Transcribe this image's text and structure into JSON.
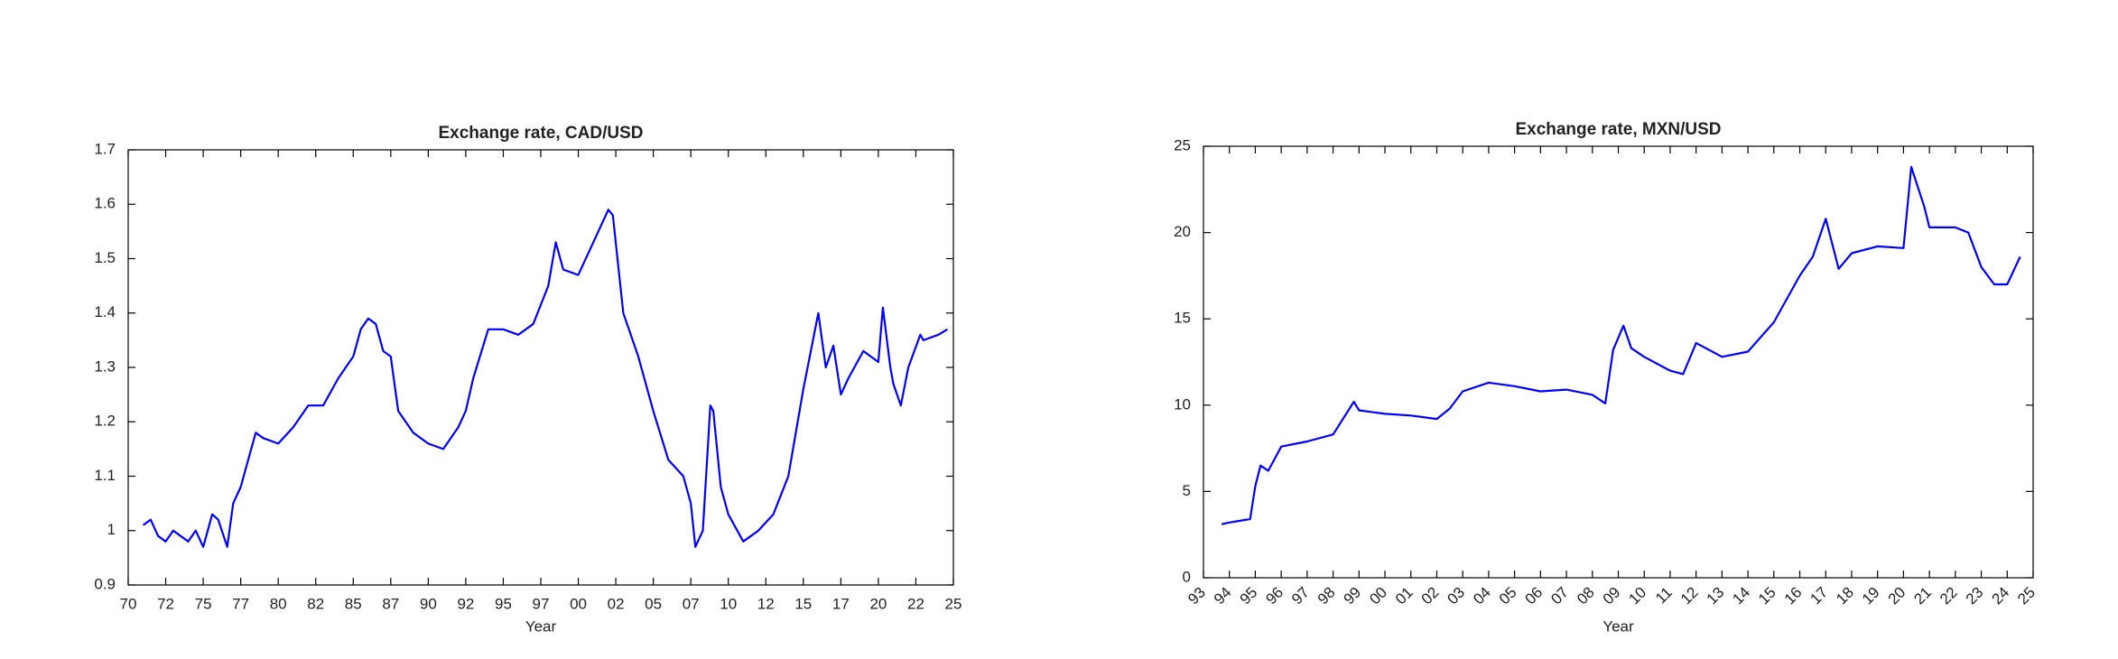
{
  "chart_data": [
    {
      "type": "line",
      "title": "Exchange rate, CAD/USD",
      "xlabel": "Year",
      "color": "#0000ff",
      "x": [
        1971,
        1971.5,
        1972,
        1972.5,
        1973,
        1974,
        1974.5,
        1975,
        1975.6,
        1976,
        1976.6,
        1977,
        1977.5,
        1978,
        1978.5,
        1979,
        1980,
        1981,
        1981.5,
        1982,
        1983,
        1984,
        1985,
        1985.5,
        1986,
        1986.5,
        1987,
        1987.5,
        1988,
        1989,
        1990,
        1991,
        1992,
        1992.5,
        1993,
        1994,
        1995,
        1996,
        1997,
        1998,
        1998.5,
        1999,
        2000,
        2001,
        2002,
        2002.3,
        2003,
        2004,
        2005,
        2006,
        2007,
        2007.5,
        2007.8,
        2008.3,
        2008.8,
        2009,
        2009.5,
        2010,
        2011,
        2012,
        2013,
        2014,
        2015,
        2016,
        2016.5,
        2017,
        2017.5,
        2018,
        2019,
        2020,
        2020.3,
        2020.8,
        2021,
        2021.5,
        2022,
        2022.8,
        2023,
        2024,
        2024.6
      ],
      "values": [
        1.01,
        1.02,
        0.99,
        0.98,
        1.0,
        0.98,
        1.0,
        0.97,
        1.03,
        1.02,
        0.97,
        1.05,
        1.08,
        1.13,
        1.18,
        1.17,
        1.16,
        1.19,
        1.21,
        1.23,
        1.23,
        1.28,
        1.32,
        1.37,
        1.39,
        1.38,
        1.33,
        1.32,
        1.22,
        1.18,
        1.16,
        1.15,
        1.19,
        1.22,
        1.28,
        1.37,
        1.37,
        1.36,
        1.38,
        1.45,
        1.53,
        1.48,
        1.47,
        1.53,
        1.59,
        1.58,
        1.4,
        1.32,
        1.22,
        1.13,
        1.1,
        1.05,
        0.97,
        1.0,
        1.23,
        1.22,
        1.08,
        1.03,
        0.98,
        1.0,
        1.03,
        1.1,
        1.26,
        1.4,
        1.3,
        1.34,
        1.25,
        1.28,
        1.33,
        1.31,
        1.41,
        1.3,
        1.27,
        1.23,
        1.3,
        1.36,
        1.35,
        1.36,
        1.37
      ],
      "xlim": [
        1970,
        2025
      ],
      "xticks": [
        {
          "value": 1970,
          "label": "70"
        },
        {
          "value": 1972.5,
          "label": "72"
        },
        {
          "value": 1975,
          "label": "75"
        },
        {
          "value": 1977.5,
          "label": "77"
        },
        {
          "value": 1980,
          "label": "80"
        },
        {
          "value": 1982.5,
          "label": "82"
        },
        {
          "value": 1985,
          "label": "85"
        },
        {
          "value": 1987.5,
          "label": "87"
        },
        {
          "value": 1990,
          "label": "90"
        },
        {
          "value": 1992.5,
          "label": "92"
        },
        {
          "value": 1995,
          "label": "95"
        },
        {
          "value": 1997.5,
          "label": "97"
        },
        {
          "value": 2000,
          "label": "00"
        },
        {
          "value": 2002.5,
          "label": "02"
        },
        {
          "value": 2005,
          "label": "05"
        },
        {
          "value": 2007.5,
          "label": "07"
        },
        {
          "value": 2010,
          "label": "10"
        },
        {
          "value": 2012.5,
          "label": "12"
        },
        {
          "value": 2015,
          "label": "15"
        },
        {
          "value": 2017.5,
          "label": "17"
        },
        {
          "value": 2020,
          "label": "20"
        },
        {
          "value": 2022.5,
          "label": "22"
        },
        {
          "value": 2025,
          "label": "25"
        }
      ],
      "ylim": [
        0.9,
        1.7
      ],
      "yticks": [
        0.9,
        1,
        1.1,
        1.2,
        1.3,
        1.4,
        1.5,
        1.6,
        1.7
      ],
      "rotate_xticks": false
    },
    {
      "type": "line",
      "title": "Exchange rate, MXN/USD",
      "xlabel": "Year",
      "color": "#0000ff",
      "x": [
        1993.7,
        1994,
        1994.8,
        1995,
        1995.2,
        1995.5,
        1996,
        1997,
        1998,
        1998.8,
        1999,
        2000,
        2001,
        2002,
        2002.5,
        2003,
        2004,
        2005,
        2006,
        2007,
        2008,
        2008.5,
        2008.8,
        2009.2,
        2009.5,
        2010,
        2011,
        2011.5,
        2012,
        2013,
        2014,
        2015,
        2016,
        2016.5,
        2017,
        2017.5,
        2018,
        2019,
        2020,
        2020.3,
        2020.8,
        2021,
        2022,
        2022.5,
        2023,
        2023.5,
        2024,
        2024.5
      ],
      "values": [
        3.1,
        3.2,
        3.4,
        5.3,
        6.5,
        6.2,
        7.6,
        7.9,
        8.3,
        10.2,
        9.7,
        9.5,
        9.4,
        9.2,
        9.8,
        10.8,
        11.3,
        11.1,
        10.8,
        10.9,
        10.6,
        10.1,
        13.2,
        14.6,
        13.3,
        12.8,
        12.0,
        11.8,
        13.6,
        12.8,
        13.1,
        14.8,
        17.5,
        18.6,
        20.8,
        17.9,
        18.8,
        19.2,
        19.1,
        23.8,
        21.5,
        20.3,
        20.3,
        20.0,
        18.0,
        17.0,
        17.0,
        18.6
      ],
      "xlim": [
        1993,
        2025
      ],
      "xticks": [
        {
          "value": 1993,
          "label": "93"
        },
        {
          "value": 1994,
          "label": "94"
        },
        {
          "value": 1995,
          "label": "95"
        },
        {
          "value": 1996,
          "label": "96"
        },
        {
          "value": 1997,
          "label": "97"
        },
        {
          "value": 1998,
          "label": "98"
        },
        {
          "value": 1999,
          "label": "99"
        },
        {
          "value": 2000,
          "label": "00"
        },
        {
          "value": 2001,
          "label": "01"
        },
        {
          "value": 2002,
          "label": "02"
        },
        {
          "value": 2003,
          "label": "03"
        },
        {
          "value": 2004,
          "label": "04"
        },
        {
          "value": 2005,
          "label": "05"
        },
        {
          "value": 2006,
          "label": "06"
        },
        {
          "value": 2007,
          "label": "07"
        },
        {
          "value": 2008,
          "label": "08"
        },
        {
          "value": 2009,
          "label": "09"
        },
        {
          "value": 2010,
          "label": "10"
        },
        {
          "value": 2011,
          "label": "11"
        },
        {
          "value": 2012,
          "label": "12"
        },
        {
          "value": 2013,
          "label": "13"
        },
        {
          "value": 2014,
          "label": "14"
        },
        {
          "value": 2015,
          "label": "15"
        },
        {
          "value": 2016,
          "label": "16"
        },
        {
          "value": 2017,
          "label": "17"
        },
        {
          "value": 2018,
          "label": "18"
        },
        {
          "value": 2019,
          "label": "19"
        },
        {
          "value": 2020,
          "label": "20"
        },
        {
          "value": 2021,
          "label": "21"
        },
        {
          "value": 2022,
          "label": "22"
        },
        {
          "value": 2023,
          "label": "23"
        },
        {
          "value": 2024,
          "label": "24"
        },
        {
          "value": 2025,
          "label": "25"
        }
      ],
      "ylim": [
        0,
        25
      ],
      "yticks": [
        0,
        5,
        10,
        15,
        20,
        25
      ],
      "rotate_xticks": true
    }
  ]
}
